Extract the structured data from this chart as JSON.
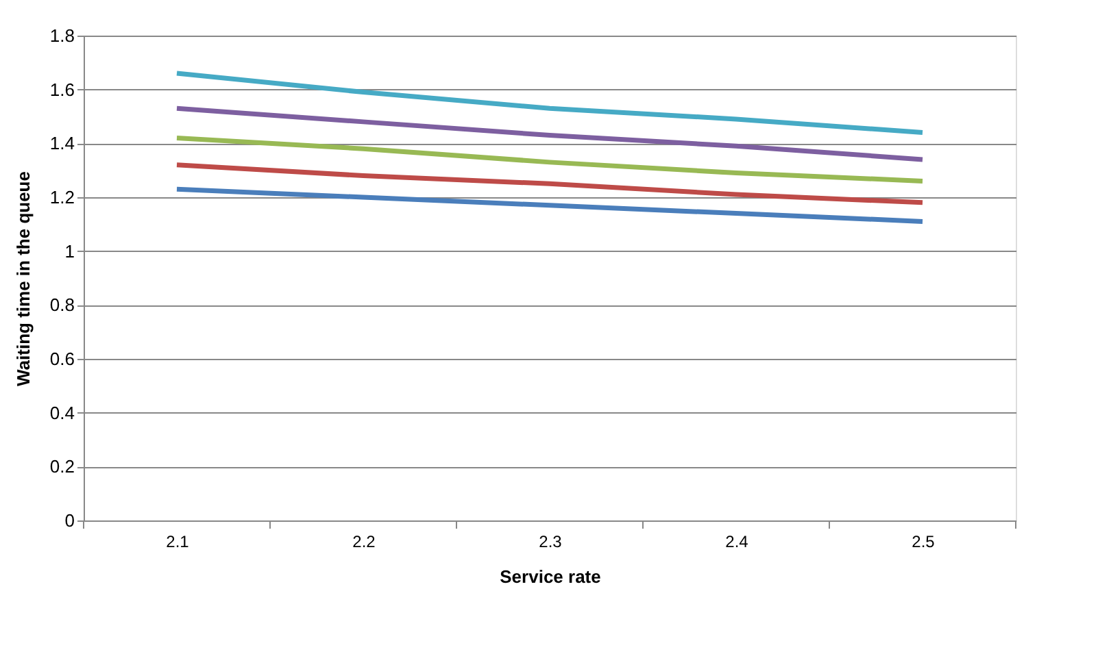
{
  "chart_data": {
    "type": "line",
    "xlabel": "Service rate",
    "ylabel": "Waiting time in the queue",
    "categories": [
      "2.1",
      "2.2",
      "2.3",
      "2.4",
      "2.5"
    ],
    "ylim": [
      0,
      1.8
    ],
    "yticks": [
      0,
      0.2,
      0.4,
      0.6,
      0.8,
      1,
      1.2,
      1.4,
      1.6,
      1.8
    ],
    "grid": "y",
    "legend": false,
    "marker": "none",
    "line_style": "solid",
    "series": [
      {
        "color": "#4a7ebb",
        "values": [
          1.23,
          1.2,
          1.17,
          1.14,
          1.11
        ]
      },
      {
        "color": "#be4b48",
        "values": [
          1.32,
          1.28,
          1.25,
          1.21,
          1.18
        ]
      },
      {
        "color": "#98b954",
        "values": [
          1.42,
          1.38,
          1.33,
          1.29,
          1.26
        ]
      },
      {
        "color": "#7d5fa0",
        "values": [
          1.53,
          1.48,
          1.43,
          1.39,
          1.34
        ]
      },
      {
        "color": "#46aac5",
        "values": [
          1.66,
          1.59,
          1.53,
          1.49,
          1.44
        ]
      }
    ]
  }
}
